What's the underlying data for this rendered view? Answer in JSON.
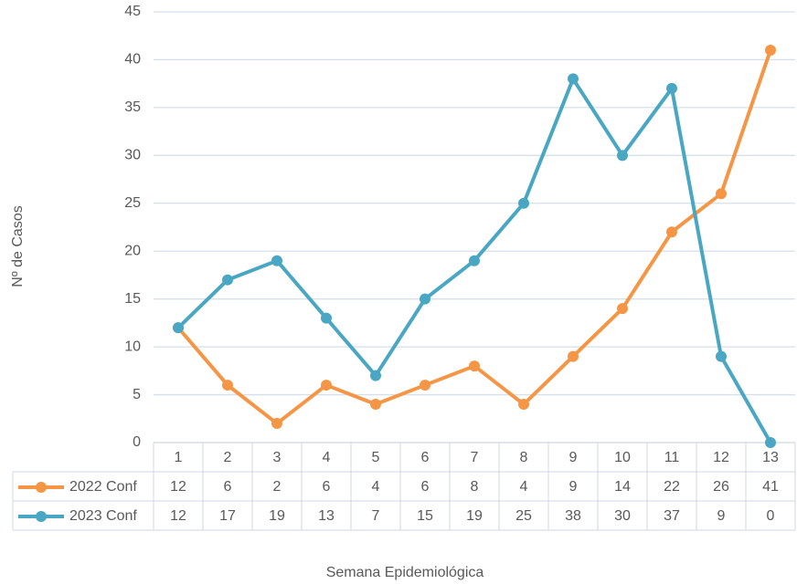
{
  "chart_data": {
    "type": "line",
    "xlabel": "Semana Epidemiológica",
    "ylabel": "Nº de Casos",
    "categories": [
      "1",
      "2",
      "3",
      "4",
      "5",
      "6",
      "7",
      "8",
      "9",
      "10",
      "11",
      "12",
      "13"
    ],
    "series": [
      {
        "name": "2022 Conf",
        "color": "#f59646",
        "values": [
          12,
          6,
          2,
          6,
          4,
          6,
          8,
          4,
          9,
          14,
          22,
          26,
          41
        ]
      },
      {
        "name": "2023 Conf",
        "color": "#4aa7c3",
        "values": [
          12,
          17,
          19,
          13,
          7,
          15,
          19,
          25,
          38,
          30,
          37,
          9,
          0
        ]
      }
    ],
    "ylim": [
      0,
      45
    ],
    "yticks": [
      0,
      5,
      10,
      15,
      20,
      25,
      30,
      35,
      40,
      45
    ],
    "grid": true
  }
}
